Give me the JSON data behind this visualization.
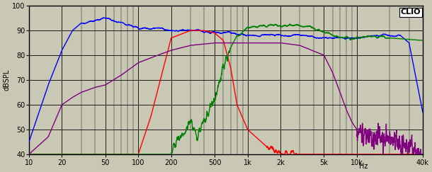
{
  "title": "CLIO",
  "ylabel": "dBSPL",
  "xlabel_right": "Hz",
  "xmin": 10,
  "xmax": 40000,
  "ymin": 40,
  "ymax": 100,
  "yticks": [
    40,
    50,
    60,
    70,
    80,
    90,
    100
  ],
  "xticks_major": [
    10,
    20,
    50,
    100,
    200,
    500,
    1000,
    2000,
    5000,
    10000,
    40000
  ],
  "xtick_labels": [
    "10",
    "20",
    "50",
    "100",
    "200",
    "500",
    "1k",
    "2k",
    "5k",
    "10k",
    "40k"
  ],
  "background_color": "#c8c8b4",
  "colors": {
    "blue": "#0000ff",
    "red": "#ff0000",
    "green": "#008000",
    "purple": "#800080"
  }
}
